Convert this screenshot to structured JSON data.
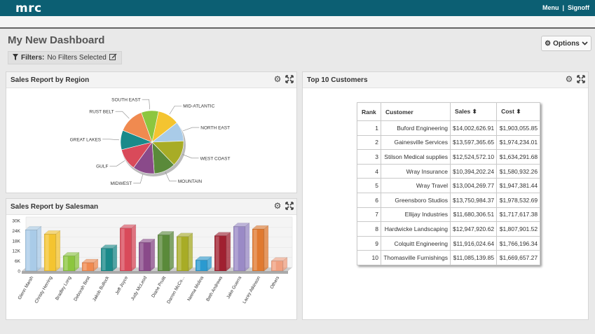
{
  "app": {
    "logo": "mrc",
    "menu": "Menu",
    "separator": "|",
    "signoff": "Signoff"
  },
  "page": {
    "title": "My New Dashboard",
    "options_label": "Options",
    "filters_label": "Filters:",
    "filters_value": "No Filters Selected"
  },
  "icons": {
    "options": "gear-icon",
    "options_caret": "chevron-down-icon",
    "filter": "filter-icon",
    "edit": "edit-icon",
    "settings": "gear-icon",
    "expand": "expand-icon"
  },
  "panels": {
    "region": {
      "title": "Sales Report by Region",
      "chart_data": {
        "type": "pie",
        "title": "",
        "slices": [
          {
            "label": "SOUTH EAST",
            "value": 8,
            "color": "#8cc63f"
          },
          {
            "label": "MID-ATLANTIC",
            "value": 10,
            "color": "#f4c430"
          },
          {
            "label": "NORTH EAST",
            "value": 9,
            "color": "#a9cbe8"
          },
          {
            "label": "WEST COAST",
            "value": 12,
            "color": "#a8ac26"
          },
          {
            "label": "MOUNTAIN",
            "value": 10,
            "color": "#5a8a3a"
          },
          {
            "label": "MIDWEST",
            "value": 10,
            "color": "#8a4a8a"
          },
          {
            "label": "GULF",
            "value": 10,
            "color": "#d94a5a"
          },
          {
            "label": "GREAT LAKES",
            "value": 9,
            "color": "#1a8a8a"
          },
          {
            "label": "RUST BELT",
            "value": 12,
            "color": "#f08a50"
          }
        ]
      }
    },
    "salesman": {
      "title": "Sales Report by Salesman",
      "chart_data": {
        "type": "bar",
        "title": "",
        "xlabel": "",
        "ylabel": "",
        "ylim": [
          0,
          30000
        ],
        "yticks": [
          "30K",
          "24K",
          "18K",
          "12K",
          "6K",
          "0"
        ],
        "categories": [
          "Glenn Marsh",
          "Christy Herring",
          "Bradley Long",
          "Deborah Best",
          "Jakob Bullock",
          "Jeff Joyce",
          "Judy McLeod",
          "Diane Pruitt",
          "Darren McCo...",
          "Neima Molina",
          "Beth Andrews",
          "Jake Guerra",
          "Lacey Atkinson",
          "Others"
        ],
        "values": [
          24500,
          22000,
          9000,
          5000,
          13500,
          25500,
          17000,
          21500,
          20500,
          6500,
          21000,
          26500,
          25000,
          6000
        ],
        "colors": [
          "#a9cbe8",
          "#f4c430",
          "#8cc63f",
          "#f08a50",
          "#1a8a8a",
          "#d94a5a",
          "#8a4a8a",
          "#5a8a3a",
          "#a8ac26",
          "#2a9ad0",
          "#a02030",
          "#9a8ac6",
          "#e07a30",
          "#f0a080"
        ]
      }
    },
    "top10": {
      "title": "Top 10 Customers",
      "columns": [
        "Rank",
        "Customer",
        "Sales",
        "Cost"
      ],
      "rows": [
        [
          "1",
          "Buford Engineering",
          "$14,002,626.91",
          "$1,903,055.85"
        ],
        [
          "2",
          "Gainesville Services",
          "$13,597,365.65",
          "$1,974,234.01"
        ],
        [
          "3",
          "Stilson Medical supplies",
          "$12,524,572.10",
          "$1,634,291.68"
        ],
        [
          "4",
          "Wray Insurance",
          "$10,394,202.24",
          "$1,580,932.26"
        ],
        [
          "5",
          "Wray Travel",
          "$13,004,269.77",
          "$1,947,381.44"
        ],
        [
          "6",
          "Greensboro Studios",
          "$13,750,984.37",
          "$1,978,532.69"
        ],
        [
          "7",
          "Ellijay Industries",
          "$11,680,306.51",
          "$1,717,617.38"
        ],
        [
          "8",
          "Hardwicke Landscaping",
          "$12,947,920.62",
          "$1,807,901.52"
        ],
        [
          "9",
          "Colquitt Engineering",
          "$11,916,024.64",
          "$1,766,196.34"
        ],
        [
          "10",
          "Thomasville Furnishings",
          "$11,085,139.85",
          "$1,669,657.27"
        ]
      ]
    }
  }
}
